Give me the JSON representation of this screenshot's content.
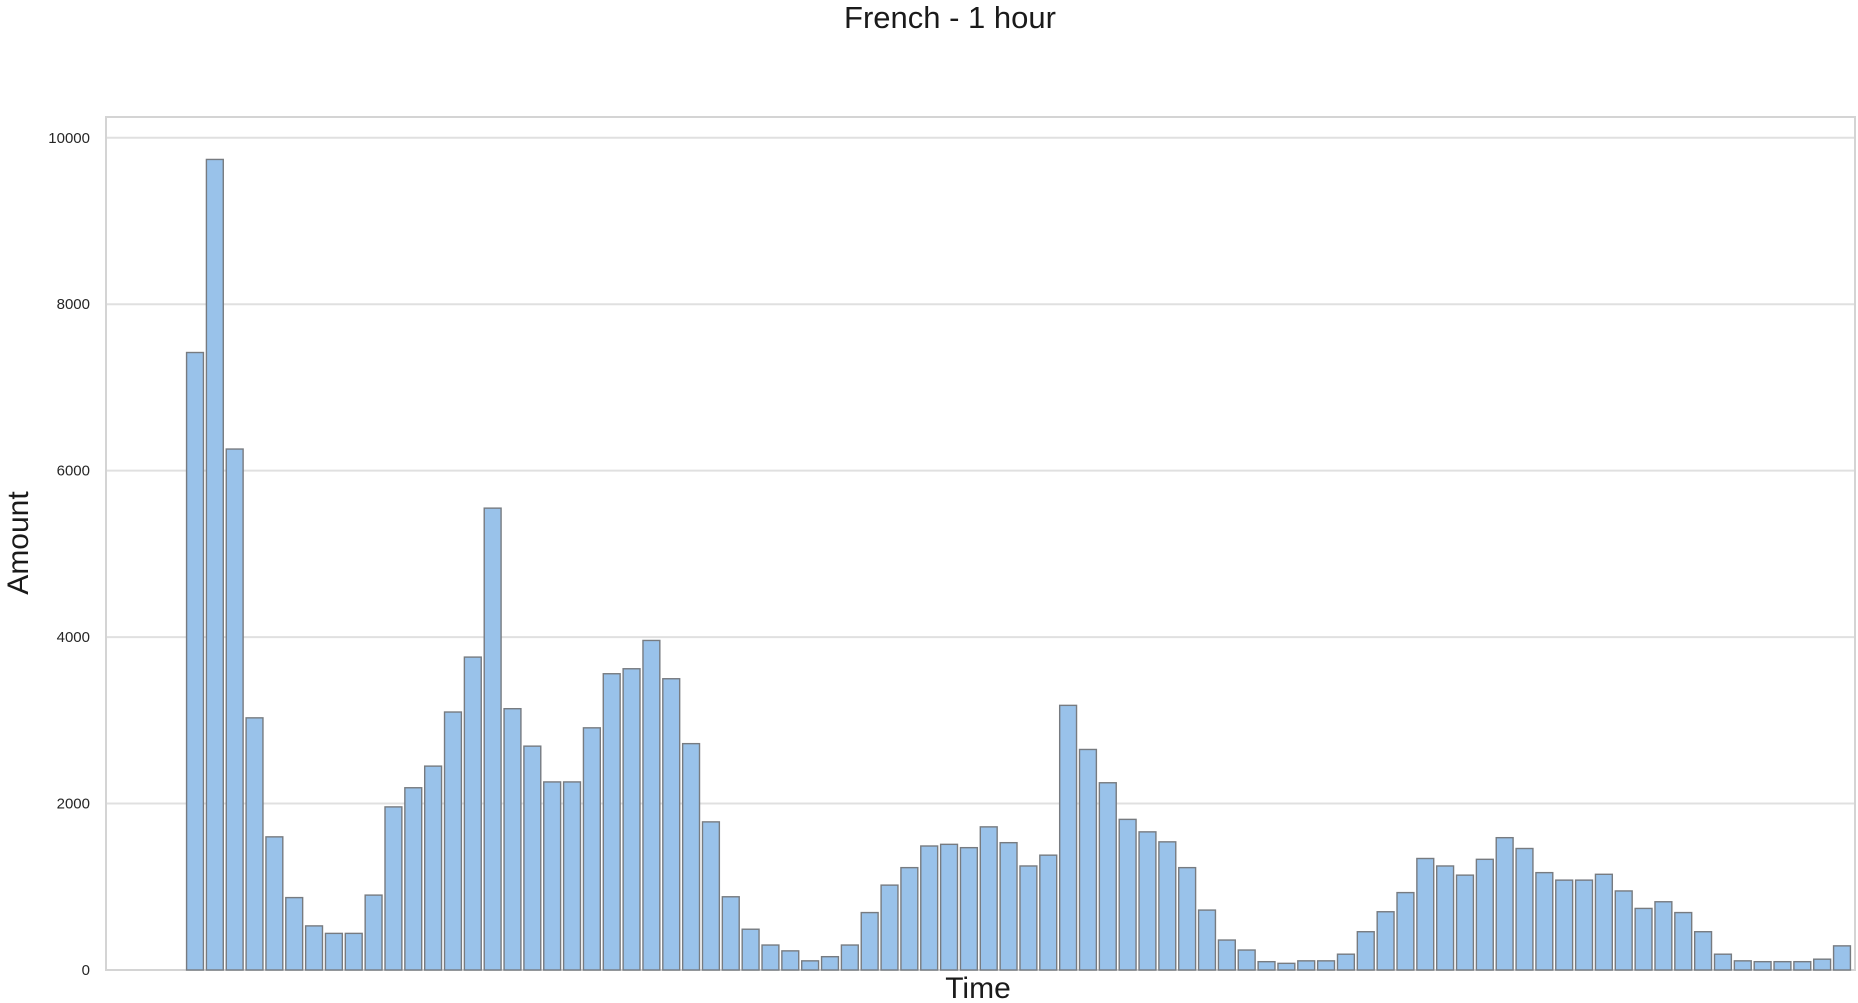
{
  "chart_data": {
    "type": "bar",
    "title": "French - 1 hour",
    "xlabel": "Time",
    "ylabel": "Amount",
    "ylim": [
      0,
      10250
    ],
    "yticks": [
      0,
      2000,
      4000,
      6000,
      8000,
      10000
    ],
    "ytick_labels": [
      "0",
      "2000",
      "4000",
      "6000",
      "8000",
      "10000"
    ],
    "grid": "horizontal",
    "legend": "none",
    "bar_color": "#99c2ea",
    "bar_edge_color": "#777b80",
    "values": [
      7420,
      9740,
      6260,
      3030,
      1600,
      870,
      530,
      440,
      440,
      900,
      1960,
      2190,
      2450,
      3100,
      3760,
      5550,
      3140,
      2690,
      2260,
      2260,
      2910,
      3560,
      3620,
      3960,
      3500,
      2720,
      1780,
      880,
      490,
      300,
      230,
      110,
      160,
      300,
      690,
      1020,
      1230,
      1490,
      1510,
      1470,
      1720,
      1530,
      1250,
      1380,
      3180,
      2650,
      2250,
      1810,
      1660,
      1540,
      1230,
      720,
      360,
      240,
      100,
      80,
      110,
      110,
      190,
      460,
      700,
      930,
      1340,
      1250,
      1140,
      1330,
      1590,
      1460,
      1170,
      1080,
      1080,
      1150,
      950,
      740,
      820,
      690,
      460,
      190,
      110,
      100,
      100,
      100,
      130,
      290
    ]
  }
}
